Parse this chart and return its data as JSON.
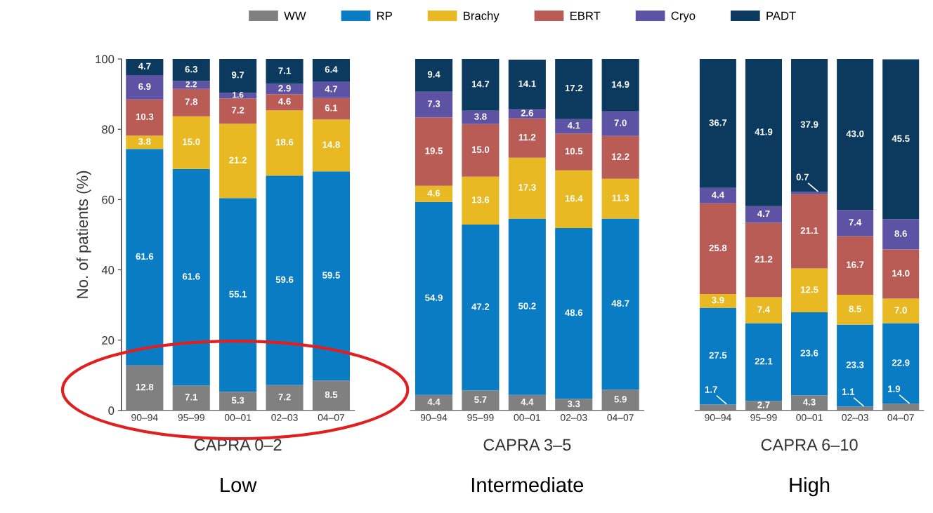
{
  "chart_data": [
    {
      "type": "bar",
      "stacked": true,
      "xlabel": "CAPRA 0–2",
      "ylabel": "No. of patients (%)",
      "annotations": [
        "Low"
      ],
      "categories": [
        "90–94",
        "95–99",
        "00–01",
        "02–03",
        "04–07"
      ],
      "ylim": [
        0,
        100
      ],
      "yticks": [
        0,
        20,
        40,
        60,
        80,
        100
      ],
      "legend": "top",
      "grid": false,
      "series": [
        {
          "name": "WW",
          "color": "#808080",
          "values": [
            12.8,
            7.1,
            5.3,
            7.2,
            8.5
          ],
          "value_labels": [
            "12.8",
            "7.1",
            "5.3",
            "7.2",
            "8.5"
          ]
        },
        {
          "name": "RP",
          "color": "#0a7cc4",
          "values": [
            61.6,
            61.6,
            55.1,
            59.6,
            59.5
          ],
          "value_labels": [
            "61.6",
            "61.6",
            "55.1",
            "59.6",
            "59.5"
          ]
        },
        {
          "name": "Brachy",
          "color": "#e8b923",
          "values": [
            3.8,
            15.0,
            21.2,
            18.6,
            14.8
          ],
          "value_labels": [
            "3.8",
            "15.0",
            "21.2",
            "18.6",
            "14.8"
          ]
        },
        {
          "name": "EBRT",
          "color": "#b85c55",
          "values": [
            10.3,
            7.8,
            7.2,
            4.6,
            6.1
          ],
          "value_labels": [
            "10.3",
            "7.8",
            "7.2",
            "4.6",
            "6.1"
          ]
        },
        {
          "name": "Cryo",
          "color": "#5d52a3",
          "values": [
            6.9,
            2.2,
            1.6,
            2.9,
            4.7
          ],
          "value_labels": [
            "6.9",
            "2.2",
            "1.6",
            "2.9",
            "4.7"
          ]
        },
        {
          "name": "PADT",
          "color": "#0b3a5e",
          "values": [
            4.7,
            6.3,
            9.7,
            7.1,
            6.4
          ],
          "value_labels": [
            "4.7",
            "6.3",
            "9.7",
            "7.1",
            "6.4"
          ]
        }
      ]
    },
    {
      "type": "bar",
      "stacked": true,
      "xlabel": "CAPRA 3–5",
      "annotations": [
        "Intermediate"
      ],
      "categories": [
        "90–94",
        "95–99",
        "00–01",
        "02–03",
        "04–07"
      ],
      "ylim": [
        0,
        100
      ],
      "tick_labels": "x",
      "grid": false,
      "series": [
        {
          "color": "#808080",
          "values": [
            4.4,
            5.7,
            4.4,
            3.3,
            5.9
          ],
          "value_labels": [
            "4.4",
            "5.7",
            "4.4",
            "3.3",
            "5.9"
          ]
        },
        {
          "color": "#0a7cc4",
          "values": [
            54.9,
            47.2,
            50.2,
            48.6,
            48.7
          ],
          "value_labels": [
            "54.9",
            "47.2",
            "50.2",
            "48.6",
            "48.7"
          ]
        },
        {
          "color": "#e8b923",
          "values": [
            4.6,
            13.6,
            17.3,
            16.4,
            11.3
          ],
          "value_labels": [
            "4.6",
            "13.6",
            "17.3",
            "16.4",
            "11.3"
          ]
        },
        {
          "color": "#b85c55",
          "values": [
            19.5,
            15.0,
            11.2,
            10.5,
            12.2
          ],
          "value_labels": [
            "19.5",
            "15.0",
            "11.2",
            "10.5",
            "12.2"
          ]
        },
        {
          "color": "#5d52a3",
          "values": [
            7.3,
            3.8,
            2.6,
            4.1,
            7.0
          ],
          "value_labels": [
            "7.3",
            "3.8",
            "2.6",
            "4.1",
            "7.0"
          ]
        },
        {
          "color": "#0b3a5e",
          "values": [
            9.4,
            14.7,
            14.1,
            17.2,
            14.9
          ],
          "value_labels": [
            "9.4",
            "14.7",
            "14.1",
            "17.2",
            "14.9"
          ]
        }
      ]
    },
    {
      "type": "bar",
      "stacked": true,
      "xlabel": "CAPRA 6–10",
      "annotations": [
        "High"
      ],
      "categories": [
        "90–94",
        "95–99",
        "00–01",
        "02–03",
        "04–07"
      ],
      "ylim": [
        0,
        100
      ],
      "tick_labels": "x",
      "grid": false,
      "series": [
        {
          "color": "#808080",
          "values": [
            1.7,
            2.7,
            4.3,
            1.1,
            1.9
          ],
          "value_labels": [
            "1.7",
            "2.7",
            "4.3",
            "1.1",
            "1.9"
          ]
        },
        {
          "color": "#0a7cc4",
          "values": [
            27.5,
            22.1,
            23.6,
            23.3,
            22.9
          ],
          "value_labels": [
            "27.5",
            "22.1",
            "23.6",
            "23.3",
            "22.9"
          ]
        },
        {
          "color": "#e8b923",
          "values": [
            3.9,
            7.4,
            12.5,
            8.5,
            7.0
          ],
          "value_labels": [
            "3.9",
            "7.4",
            "12.5",
            "8.5",
            "7.0"
          ]
        },
        {
          "color": "#b85c55",
          "values": [
            25.8,
            21.2,
            21.1,
            16.7,
            14.0
          ],
          "value_labels": [
            "25.8",
            "21.2",
            "21.1",
            "16.7",
            "14.0"
          ]
        },
        {
          "color": "#5d52a3",
          "values": [
            4.4,
            4.7,
            0.7,
            7.4,
            8.6
          ],
          "value_labels": [
            "4.4",
            "4.7",
            "0.7",
            "7.4",
            "8.6"
          ]
        },
        {
          "color": "#0b3a5e",
          "values": [
            36.7,
            41.9,
            37.9,
            43.0,
            45.5
          ],
          "value_labels": [
            "36.7",
            "41.9",
            "37.9",
            "43.0",
            "45.5"
          ]
        }
      ]
    }
  ]
}
